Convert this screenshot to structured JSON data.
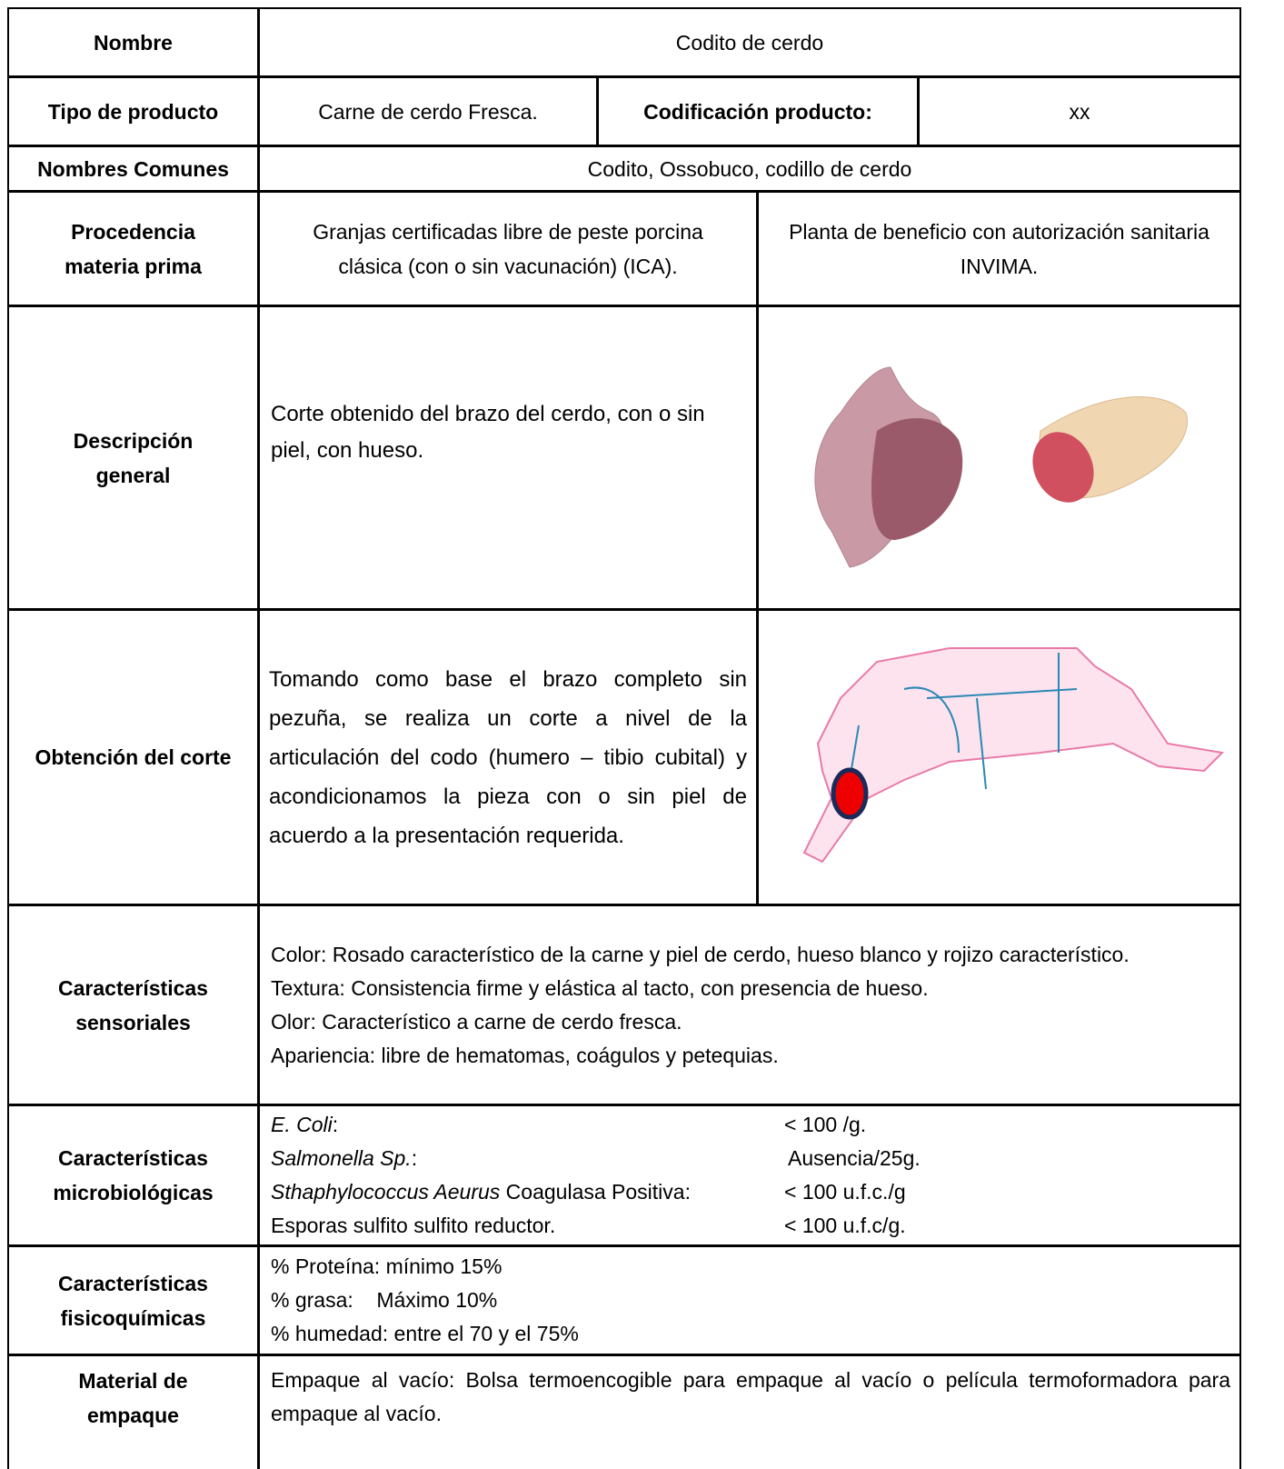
{
  "rows": {
    "name": {
      "label": "Nombre",
      "value": "Codito de cerdo"
    },
    "type": {
      "label": "Tipo de producto",
      "value": "Carne de cerdo Fresca.",
      "code_label": "Codificación producto:",
      "code_value": "xx"
    },
    "common": {
      "label": "Nombres Comunes",
      "value": "Codito, Ossobuco, codillo de cerdo"
    },
    "origin": {
      "label": "Procedencia materia prima",
      "farms": "Granjas certificadas libre de peste porcina clásica (con o sin vacunación) (ICA).",
      "plant": "Planta de beneficio con autorización sanitaria INVIMA."
    },
    "description": {
      "label": "Descripción general",
      "text": "Corte obtenido del brazo del cerdo, con o sin piel, con hueso."
    },
    "cut": {
      "label": "Obtención del corte",
      "text": "Tomando como base el brazo completo sin pezuña, se realiza un corte a nivel de la articulación del codo (humero – tibio cubital) y acondicionamos la pieza con o sin piel de acuerdo a la presentación requerida."
    },
    "sensory": {
      "label": "Características sensoriales",
      "lines": [
        "Color: Rosado característico de la carne y piel de cerdo, hueso blanco y rojizo característico.",
        "Textura: Consistencia firme y elástica al tacto, con presencia de hueso.",
        "Olor: Característico a carne de cerdo fresca.",
        "Apariencia: libre de hematomas, coágulos y petequias."
      ]
    },
    "micro": {
      "label": "Características microbiológicas",
      "items": [
        {
          "name": "E. Coli",
          "suffix": ":",
          "value": "< 100 /g."
        },
        {
          "name": "Salmonella Sp.",
          "suffix": ":",
          "value": "Ausencia/25g."
        },
        {
          "name": "Sthaphylococcus Aeurus",
          "suffix": " Coagulasa Positiva:",
          "value": "< 100 u.f.c./g"
        },
        {
          "text": "Esporas sulfito sulfito reductor.",
          "value": "< 100 u.f.c/g."
        }
      ]
    },
    "physchem": {
      "label": "Características fisicoquímicas",
      "lines": [
        "% Proteína: mínimo 15%",
        "% grasa:    Máximo 10%",
        "% humedad: entre el 70 y el 75%"
      ]
    },
    "packaging": {
      "label": "Material de empaque",
      "text": "Empaque al vacío: Bolsa termoencogible para empaque al vacío o película termoformadora para empaque al vacío."
    }
  }
}
